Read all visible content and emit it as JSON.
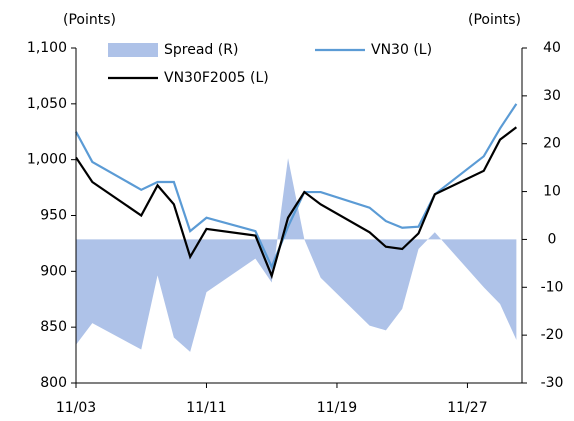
{
  "chart_data": {
    "type": "combo",
    "left_axis_label": "(Points)",
    "right_axis_label": "(Points)",
    "x": [
      "11/03",
      "11/04",
      "11/07",
      "11/08",
      "11/09",
      "11/10",
      "11/11",
      "11/14",
      "11/15",
      "11/16",
      "11/17",
      "11/18",
      "11/21",
      "11/22",
      "11/23",
      "11/24",
      "11/25",
      "11/28",
      "11/29",
      "11/30"
    ],
    "xticks": [
      "11/03",
      "11/11",
      "11/19",
      "11/27"
    ],
    "series": [
      {
        "name": "Spread (R)",
        "color": "#aec2e8",
        "type": "area",
        "axis": "y2",
        "values": [
          -22,
          -17.5,
          -23,
          -7.5,
          -20.5,
          -23.5,
          -11,
          -4,
          -9,
          17,
          0,
          -8,
          -18,
          -19,
          -14.5,
          -2,
          1.5,
          -10,
          -13.5,
          -21
        ]
      },
      {
        "name": "VN30 (L)",
        "color": "#5b9bd5",
        "type": "line",
        "values": [
          1025,
          998,
          973,
          980,
          980,
          936,
          948,
          936,
          904,
          940,
          971,
          971,
          957,
          945,
          939,
          940,
          969,
          1003,
          1028,
          1050
        ]
      },
      {
        "name": "VN30F2005 (L)",
        "color": "#000000",
        "type": "line",
        "values": [
          1002,
          980,
          950,
          977,
          960,
          913,
          938,
          932,
          896,
          948,
          971,
          960,
          935,
          922,
          920,
          934,
          969,
          990,
          1018,
          1029
        ]
      }
    ],
    "ylim": [
      800,
      1100
    ],
    "yticks": [
      800,
      850,
      900,
      950,
      {
        "value": 1000,
        "label": "1,000"
      },
      {
        "value": 1050,
        "label": "1,050"
      },
      {
        "value": 1100,
        "label": "1,100"
      }
    ],
    "y2lim": [
      -30,
      40
    ],
    "y2ticks": [
      -30,
      -20,
      -10,
      0,
      10,
      20,
      30,
      40
    ],
    "grid": false
  }
}
